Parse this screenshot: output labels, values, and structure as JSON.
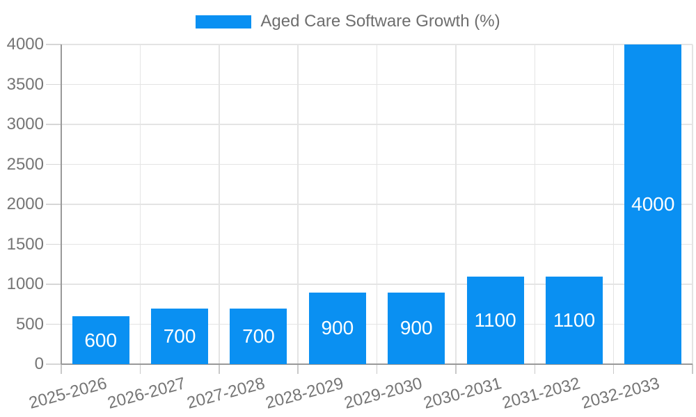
{
  "chart_data": {
    "type": "bar",
    "title": "Aged Care Software Growth (%)",
    "categories": [
      "2025-2026",
      "2026-2027",
      "2027-2028",
      "2028-2029",
      "2029-2030",
      "2030-2031",
      "2031-2032",
      "2032-2033"
    ],
    "values": [
      600,
      700,
      700,
      900,
      900,
      1100,
      1100,
      4000
    ],
    "value_labels": [
      "600",
      "700",
      "700",
      "900",
      "900",
      "1100",
      "1100",
      "4000"
    ],
    "yticks": [
      0,
      500,
      1000,
      1500,
      2000,
      2500,
      3000,
      3500,
      4000
    ],
    "ytick_labels": [
      "0",
      "500",
      "1000",
      "1500",
      "2000",
      "2500",
      "3000",
      "3500",
      "4000"
    ],
    "ylim": [
      0,
      4000
    ],
    "xlabel": "",
    "ylabel": "",
    "grid": true,
    "legend_position": "top",
    "bar_color": "#0a90f2",
    "value_label_color": "#ffffff",
    "tick_label_color": "#757575",
    "legend_text_color": "#6e6e6e",
    "gridline_color": "#e4e4e4",
    "axis_line_color": "#999999"
  }
}
